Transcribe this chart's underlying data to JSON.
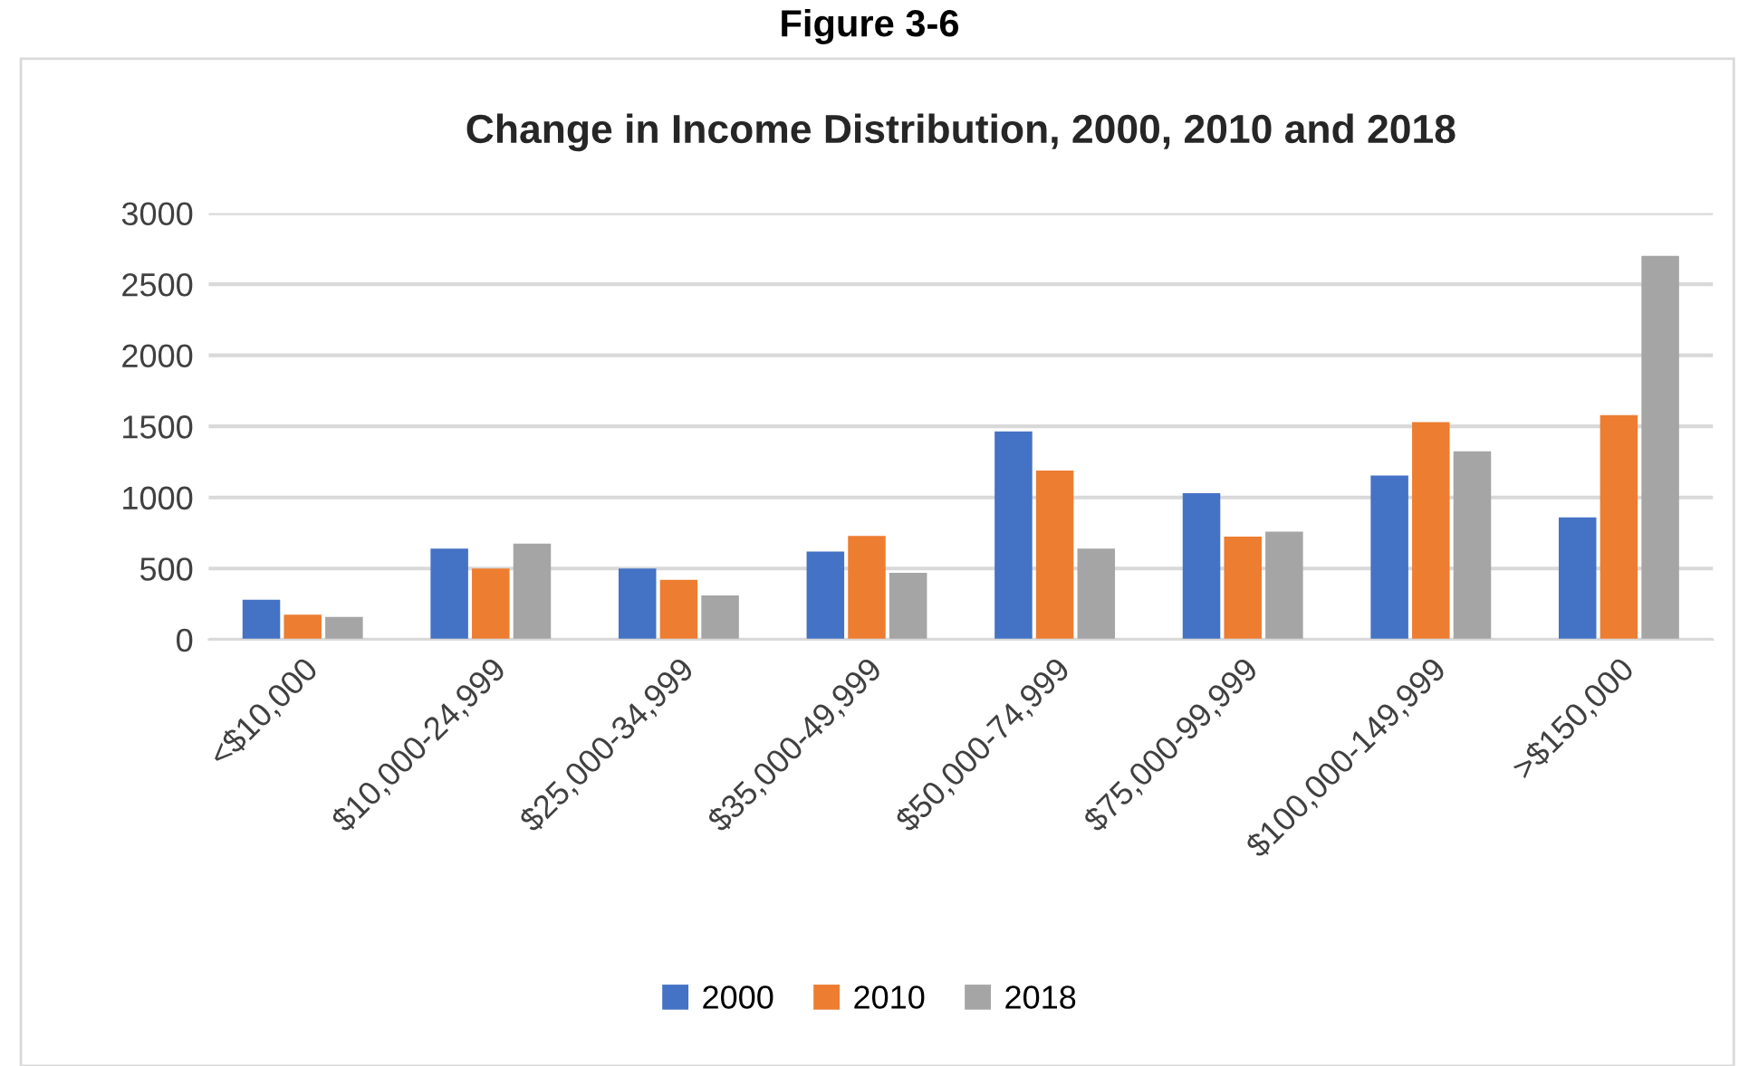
{
  "chart_data": {
    "type": "bar",
    "title": "Change in Income Distribution, 2000, 2010 and 2018",
    "annotations": [
      "Figure 3-6"
    ],
    "categories": [
      "<$10,000",
      "$10,000-24,999",
      "$25,000-34,999",
      "$35,000-49,999",
      "$50,000-74,999",
      "$75,000-99,999",
      "$100,000-149,999",
      ">$150,000"
    ],
    "series": [
      {
        "name": "2000",
        "color": "#4472c4",
        "values": [
          280,
          640,
          500,
          620,
          1465,
          1030,
          1155,
          860
        ]
      },
      {
        "name": "2010",
        "color": "#ed7d31",
        "values": [
          175,
          500,
          420,
          730,
          1190,
          725,
          1530,
          1580
        ]
      },
      {
        "name": "2018",
        "color": "#a5a5a5",
        "values": [
          160,
          675,
          310,
          470,
          640,
          760,
          1325,
          2700
        ]
      }
    ],
    "ylim": [
      0,
      3000
    ],
    "yticks": [
      0,
      500,
      1000,
      1500,
      2000,
      2500,
      3000
    ],
    "grid": "y",
    "legend": "bottom"
  }
}
